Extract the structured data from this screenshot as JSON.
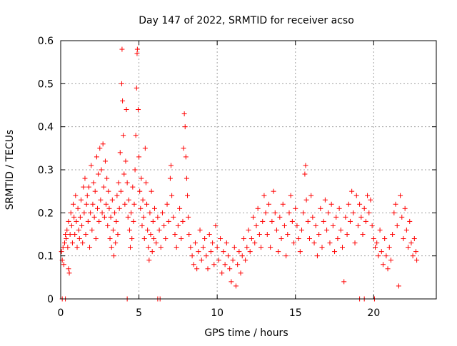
{
  "chart_data": {
    "type": "scatter",
    "title": "Day 147 of 2022, SRMTID for receiver acso",
    "xlabel": "GPS time / hours",
    "ylabel": "SRMTID / TECUs",
    "xlim": [
      0,
      24
    ],
    "ylim": [
      0,
      0.6
    ],
    "xticks": [
      0,
      5,
      10,
      15,
      20
    ],
    "yticks": [
      0,
      0.1,
      0.2,
      0.3,
      0.4,
      0.5,
      0.6
    ],
    "xtick_labels": [
      "0",
      "5",
      "10",
      "15",
      "20"
    ],
    "ytick_labels": [
      "0",
      "0.1",
      "0.2",
      "0.3",
      "0.4",
      "0.5",
      "0.6"
    ],
    "grid": true,
    "marker": "plus",
    "color": "#ff0000",
    "series": [
      {
        "name": "SRMTID",
        "points": [
          [
            0.05,
            0.11
          ],
          [
            0.1,
            0.09
          ],
          [
            0.15,
            0.12
          ],
          [
            0.2,
            0.08
          ],
          [
            0.25,
            0.13
          ],
          [
            0.3,
            0.15
          ],
          [
            0.35,
            0.14
          ],
          [
            0.4,
            0.16
          ],
          [
            0.45,
            0.12
          ],
          [
            0.5,
            0.18
          ],
          [
            0.5,
            0.07
          ],
          [
            0.55,
            0.06
          ],
          [
            0.6,
            0.15
          ],
          [
            0.65,
            0.2
          ],
          [
            0.7,
            0.17
          ],
          [
            0.75,
            0.13
          ],
          [
            0.8,
            0.22
          ],
          [
            0.85,
            0.19
          ],
          [
            0.9,
            0.15
          ],
          [
            0.95,
            0.24
          ],
          [
            1.0,
            0.18
          ],
          [
            1.05,
            0.12
          ],
          [
            1.1,
            0.21
          ],
          [
            1.15,
            0.16
          ],
          [
            1.2,
            0.14
          ],
          [
            1.25,
            0.19
          ],
          [
            1.3,
            0.23
          ],
          [
            1.35,
            0.17
          ],
          [
            1.4,
            0.13
          ],
          [
            1.45,
            0.26
          ],
          [
            1.5,
            0.2
          ],
          [
            1.55,
            0.28
          ],
          [
            1.6,
            0.15
          ],
          [
            1.65,
            0.22
          ],
          [
            1.7,
            0.24
          ],
          [
            1.75,
            0.18
          ],
          [
            1.8,
            0.26
          ],
          [
            1.85,
            0.12
          ],
          [
            1.9,
            0.2
          ],
          [
            1.95,
            0.31
          ],
          [
            2.0,
            0.16
          ],
          [
            2.05,
            0.22
          ],
          [
            2.1,
            0.27
          ],
          [
            2.15,
            0.19
          ],
          [
            2.2,
            0.25
          ],
          [
            2.25,
            0.14
          ],
          [
            2.3,
            0.33
          ],
          [
            2.35,
            0.21
          ],
          [
            2.4,
            0.29
          ],
          [
            2.45,
            0.18
          ],
          [
            2.5,
            0.35
          ],
          [
            2.55,
            0.23
          ],
          [
            2.6,
            0.3
          ],
          [
            2.65,
            0.2
          ],
          [
            2.7,
            0.36
          ],
          [
            2.75,
            0.26
          ],
          [
            2.8,
            0.19
          ],
          [
            2.85,
            0.32
          ],
          [
            2.9,
            0.22
          ],
          [
            2.95,
            0.28
          ],
          [
            3.0,
            0.17
          ],
          [
            3.05,
            0.25
          ],
          [
            3.1,
            0.21
          ],
          [
            3.15,
            0.14
          ],
          [
            3.2,
            0.19
          ],
          [
            3.25,
            0.12
          ],
          [
            3.3,
            0.23
          ],
          [
            3.35,
            0.16
          ],
          [
            3.4,
            0.1
          ],
          [
            3.45,
            0.2
          ],
          [
            3.5,
            0.13
          ],
          [
            3.55,
            0.18
          ],
          [
            3.6,
            0.24
          ],
          [
            3.65,
            0.15
          ],
          [
            3.7,
            0.27
          ],
          [
            3.75,
            0.21
          ],
          [
            3.8,
            0.34
          ],
          [
            3.85,
            0.25
          ],
          [
            3.9,
            0.5
          ],
          [
            3.92,
            0.58
          ],
          [
            3.95,
            0.46
          ],
          [
            4.0,
            0.38
          ],
          [
            4.05,
            0.29
          ],
          [
            4.1,
            0.22
          ],
          [
            4.15,
            0.32
          ],
          [
            4.2,
            0.44
          ],
          [
            4.25,
            0.27
          ],
          [
            4.3,
            0.19
          ],
          [
            4.35,
            0.23
          ],
          [
            4.4,
            0.16
          ],
          [
            4.45,
            0.12
          ],
          [
            4.5,
            0.2
          ],
          [
            4.55,
            0.14
          ],
          [
            4.6,
            0.26
          ],
          [
            4.65,
            0.18
          ],
          [
            4.7,
            0.22
          ],
          [
            4.75,
            0.3
          ],
          [
            4.8,
            0.38
          ],
          [
            4.85,
            0.49
          ],
          [
            4.88,
            0.57
          ],
          [
            4.9,
            0.58
          ],
          [
            4.95,
            0.44
          ],
          [
            5.0,
            0.33
          ],
          [
            5.05,
            0.25
          ],
          [
            5.1,
            0.21
          ],
          [
            5.15,
            0.28
          ],
          [
            5.2,
            0.17
          ],
          [
            5.25,
            0.23
          ],
          [
            5.3,
            0.19
          ],
          [
            5.35,
            0.14
          ],
          [
            5.4,
            0.35
          ],
          [
            5.45,
            0.27
          ],
          [
            5.5,
            0.22
          ],
          [
            5.55,
            0.16
          ],
          [
            5.6,
            0.12
          ],
          [
            5.65,
            0.09
          ],
          [
            5.7,
            0.2
          ],
          [
            5.75,
            0.15
          ],
          [
            5.8,
            0.25
          ],
          [
            5.85,
            0.11
          ],
          [
            5.9,
            0.18
          ],
          [
            5.95,
            0.14
          ],
          [
            6.0,
            0.21
          ],
          [
            6.1,
            0.13
          ],
          [
            6.2,
            0.19
          ],
          [
            6.3,
            0.16
          ],
          [
            6.4,
            0.12
          ],
          [
            6.5,
            0.2
          ],
          [
            6.6,
            0.17
          ],
          [
            6.7,
            0.14
          ],
          [
            6.8,
            0.22
          ],
          [
            6.9,
            0.18
          ],
          [
            7.0,
            0.28
          ],
          [
            7.05,
            0.31
          ],
          [
            7.1,
            0.24
          ],
          [
            7.2,
            0.19
          ],
          [
            7.3,
            0.15
          ],
          [
            7.4,
            0.12
          ],
          [
            7.5,
            0.17
          ],
          [
            7.6,
            0.21
          ],
          [
            7.7,
            0.14
          ],
          [
            7.8,
            0.18
          ],
          [
            7.85,
            0.35
          ],
          [
            7.9,
            0.43
          ],
          [
            7.95,
            0.4
          ],
          [
            8.0,
            0.33
          ],
          [
            8.05,
            0.28
          ],
          [
            8.1,
            0.24
          ],
          [
            8.15,
            0.19
          ],
          [
            8.2,
            0.15
          ],
          [
            8.3,
            0.12
          ],
          [
            8.4,
            0.1
          ],
          [
            8.5,
            0.08
          ],
          [
            8.6,
            0.13
          ],
          [
            8.7,
            0.07
          ],
          [
            8.8,
            0.11
          ],
          [
            8.9,
            0.16
          ],
          [
            9.0,
            0.09
          ],
          [
            9.1,
            0.12
          ],
          [
            9.2,
            0.14
          ],
          [
            9.3,
            0.1
          ],
          [
            9.4,
            0.07
          ],
          [
            9.5,
            0.15
          ],
          [
            9.6,
            0.11
          ],
          [
            9.7,
            0.13
          ],
          [
            9.8,
            0.08
          ],
          [
            9.9,
            0.17
          ],
          [
            10.0,
            0.12
          ],
          [
            10.1,
            0.09
          ],
          [
            10.2,
            0.14
          ],
          [
            10.3,
            0.06
          ],
          [
            10.4,
            0.11
          ],
          [
            10.5,
            0.08
          ],
          [
            10.6,
            0.13
          ],
          [
            10.7,
            0.1
          ],
          [
            10.8,
            0.07
          ],
          [
            10.9,
            0.04
          ],
          [
            11.0,
            0.09
          ],
          [
            11.1,
            0.12
          ],
          [
            11.2,
            0.03
          ],
          [
            11.3,
            0.08
          ],
          [
            11.4,
            0.11
          ],
          [
            11.5,
            0.06
          ],
          [
            11.6,
            0.1
          ],
          [
            11.7,
            0.14
          ],
          [
            11.8,
            0.09
          ],
          [
            11.9,
            0.12
          ],
          [
            12.0,
            0.16
          ],
          [
            12.1,
            0.11
          ],
          [
            12.2,
            0.14
          ],
          [
            12.3,
            0.19
          ],
          [
            12.4,
            0.13
          ],
          [
            12.5,
            0.17
          ],
          [
            12.6,
            0.21
          ],
          [
            12.7,
            0.15
          ],
          [
            12.8,
            0.12
          ],
          [
            12.9,
            0.18
          ],
          [
            13.0,
            0.24
          ],
          [
            13.1,
            0.2
          ],
          [
            13.2,
            0.15
          ],
          [
            13.3,
            0.22
          ],
          [
            13.4,
            0.12
          ],
          [
            13.5,
            0.18
          ],
          [
            13.6,
            0.25
          ],
          [
            13.7,
            0.2
          ],
          [
            13.8,
            0.16
          ],
          [
            13.9,
            0.11
          ],
          [
            14.0,
            0.19
          ],
          [
            14.1,
            0.14
          ],
          [
            14.2,
            0.22
          ],
          [
            14.3,
            0.17
          ],
          [
            14.4,
            0.1
          ],
          [
            14.5,
            0.15
          ],
          [
            14.6,
            0.2
          ],
          [
            14.7,
            0.24
          ],
          [
            14.8,
            0.18
          ],
          [
            14.9,
            0.13
          ],
          [
            15.0,
            0.21
          ],
          [
            15.1,
            0.17
          ],
          [
            15.2,
            0.14
          ],
          [
            15.3,
            0.11
          ],
          [
            15.4,
            0.16
          ],
          [
            15.5,
            0.2
          ],
          [
            15.6,
            0.29
          ],
          [
            15.65,
            0.31
          ],
          [
            15.7,
            0.23
          ],
          [
            15.8,
            0.18
          ],
          [
            15.9,
            0.14
          ],
          [
            16.0,
            0.24
          ],
          [
            16.1,
            0.19
          ],
          [
            16.2,
            0.13
          ],
          [
            16.3,
            0.17
          ],
          [
            16.4,
            0.1
          ],
          [
            16.5,
            0.15
          ],
          [
            16.6,
            0.21
          ],
          [
            16.7,
            0.12
          ],
          [
            16.8,
            0.18
          ],
          [
            16.9,
            0.23
          ],
          [
            17.0,
            0.16
          ],
          [
            17.1,
            0.2
          ],
          [
            17.2,
            0.13
          ],
          [
            17.3,
            0.22
          ],
          [
            17.4,
            0.17
          ],
          [
            17.5,
            0.11
          ],
          [
            17.6,
            0.19
          ],
          [
            17.7,
            0.14
          ],
          [
            17.8,
            0.21
          ],
          [
            17.9,
            0.16
          ],
          [
            18.0,
            0.12
          ],
          [
            18.1,
            0.04
          ],
          [
            18.2,
            0.19
          ],
          [
            18.3,
            0.15
          ],
          [
            18.4,
            0.22
          ],
          [
            18.5,
            0.18
          ],
          [
            18.6,
            0.25
          ],
          [
            18.7,
            0.2
          ],
          [
            18.8,
            0.13
          ],
          [
            18.9,
            0.24
          ],
          [
            19.0,
            0.17
          ],
          [
            19.1,
            0.22
          ],
          [
            19.2,
            0.19
          ],
          [
            19.3,
            0.15
          ],
          [
            19.4,
            0.21
          ],
          [
            19.5,
            0.18
          ],
          [
            19.6,
            0.24
          ],
          [
            19.7,
            0.2
          ],
          [
            19.8,
            0.23
          ],
          [
            19.9,
            0.17
          ],
          [
            20.0,
            0.14
          ],
          [
            20.1,
            0.12
          ],
          [
            20.2,
            0.13
          ],
          [
            20.3,
            0.1
          ],
          [
            20.4,
            0.16
          ],
          [
            20.5,
            0.11
          ],
          [
            20.6,
            0.08
          ],
          [
            20.7,
            0.14
          ],
          [
            20.8,
            0.1
          ],
          [
            20.9,
            0.07
          ],
          [
            21.0,
            0.12
          ],
          [
            21.1,
            0.09
          ],
          [
            21.2,
            0.15
          ],
          [
            21.3,
            0.2
          ],
          [
            21.4,
            0.22
          ],
          [
            21.5,
            0.17
          ],
          [
            21.6,
            0.03
          ],
          [
            21.7,
            0.24
          ],
          [
            21.8,
            0.19
          ],
          [
            21.9,
            0.14
          ],
          [
            22.0,
            0.21
          ],
          [
            22.1,
            0.16
          ],
          [
            22.2,
            0.12
          ],
          [
            22.3,
            0.18
          ],
          [
            22.4,
            0.13
          ],
          [
            22.5,
            0.1
          ],
          [
            22.6,
            0.14
          ],
          [
            22.7,
            0.11
          ],
          [
            22.75,
            0.09
          ],
          [
            0.1,
            0.0
          ],
          [
            0.3,
            0.0
          ],
          [
            4.25,
            0.0
          ],
          [
            6.2,
            0.0
          ],
          [
            6.35,
            0.0
          ],
          [
            19.1,
            0.0
          ],
          [
            19.4,
            0.0
          ],
          [
            20.05,
            0.0
          ]
        ]
      }
    ]
  }
}
